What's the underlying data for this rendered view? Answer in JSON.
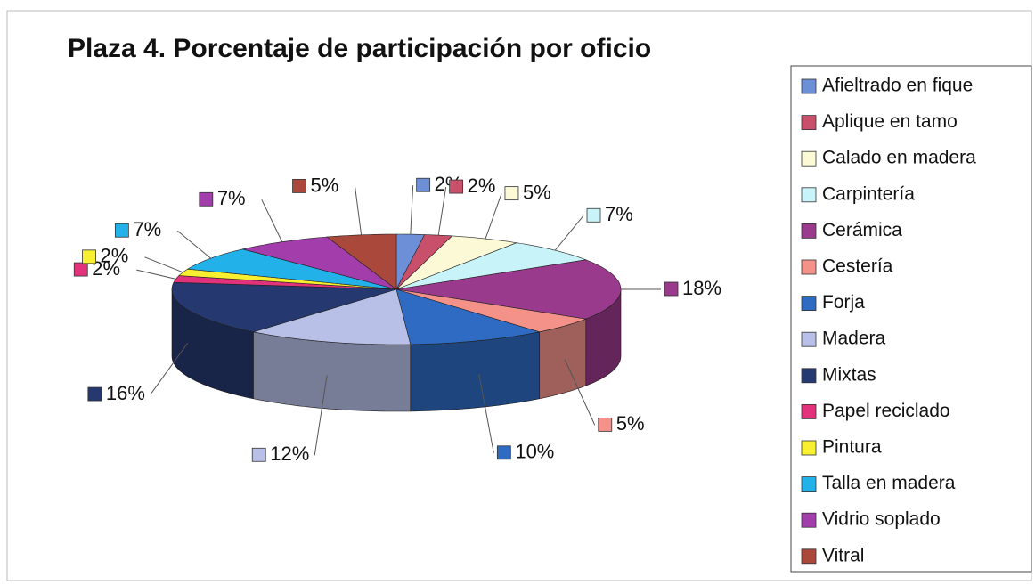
{
  "chart_data": {
    "type": "pie",
    "title": "Plaza 4.  Porcentaje de participación por oficio",
    "categories": [
      "Afieltrado en fique",
      "Aplique en tamo",
      "Calado en madera",
      "Carpintería",
      "Cerámica",
      "Cestería",
      "Forja",
      "Madera",
      "Mixtas",
      "Papel reciclado",
      "Pintura",
      "Talla en madera",
      "Vidrio soplado",
      "Vitral"
    ],
    "values": [
      2,
      2,
      5,
      7,
      18,
      5,
      10,
      12,
      16,
      2,
      2,
      7,
      7,
      5
    ],
    "value_labels": [
      "2%",
      "2%",
      "5%",
      "7%",
      "18%",
      "5%",
      "10%",
      "12%",
      "16%",
      "2%",
      "2%",
      "7%",
      "7%",
      "5%"
    ],
    "colors": [
      "#6d8fd8",
      "#c8506a",
      "#fbf9d6",
      "#c8f3f8",
      "#9a3a8c",
      "#f4928a",
      "#2f6bc2",
      "#b9c0e8",
      "#25386f",
      "#e2327c",
      "#f7ef2f",
      "#22b1e8",
      "#a23dab",
      "#a9483b"
    ],
    "legend": "right"
  }
}
